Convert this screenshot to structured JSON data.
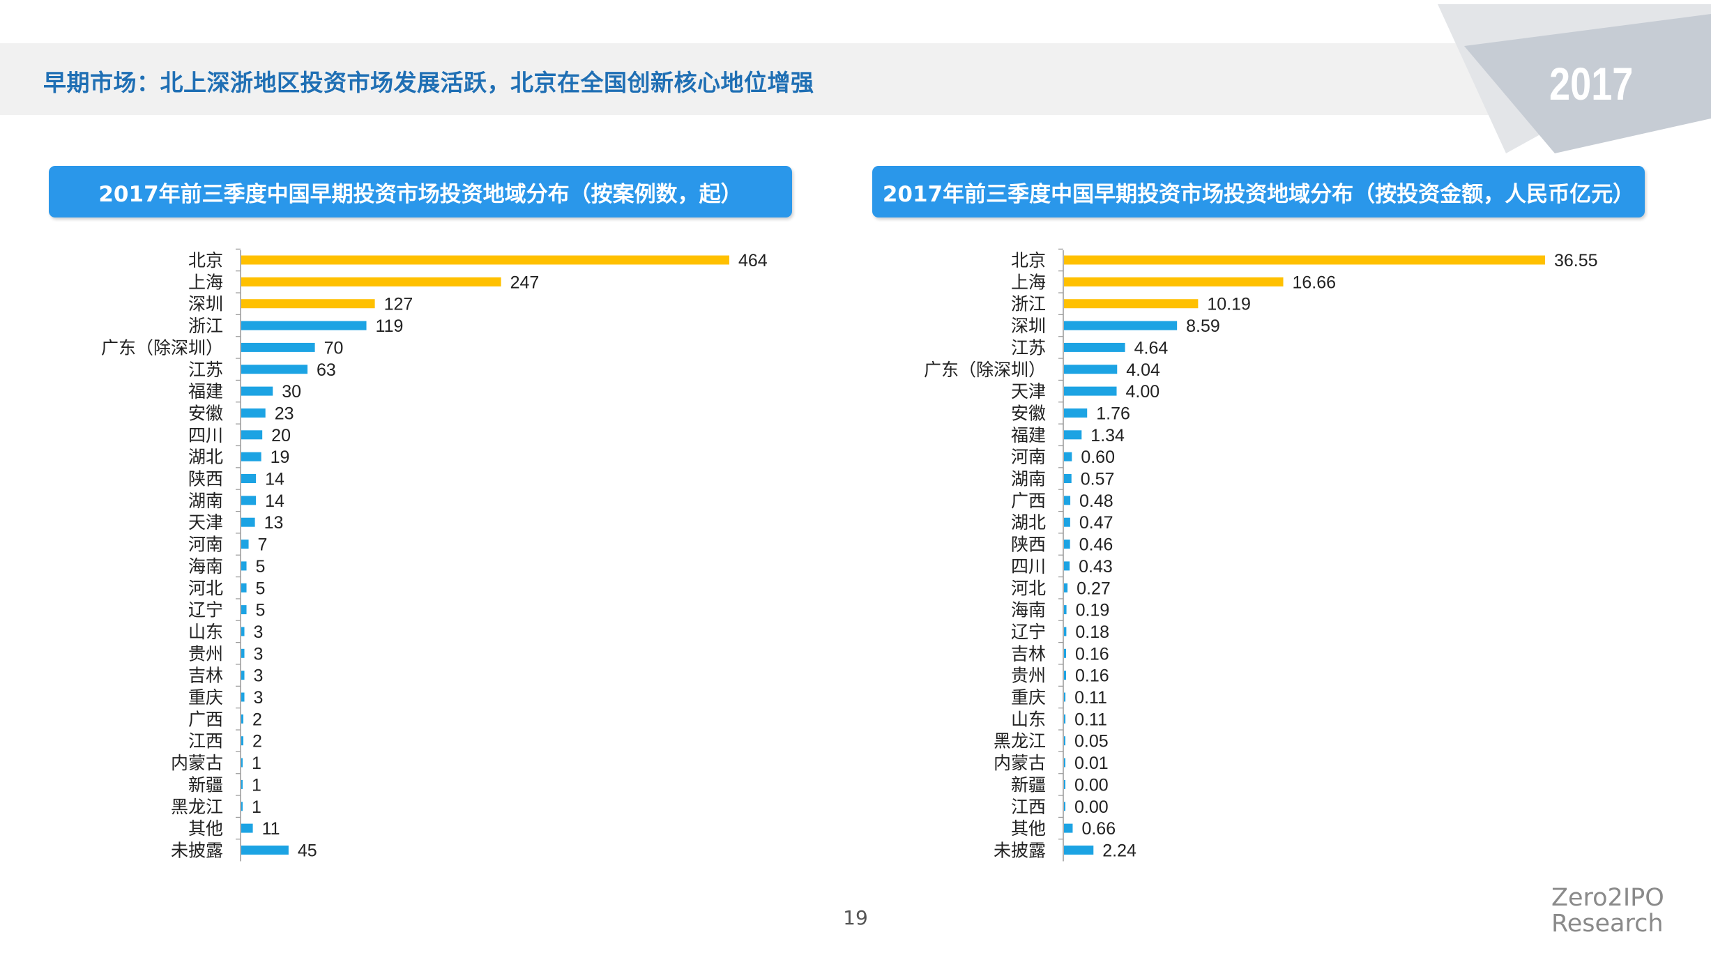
{
  "slide": {
    "title": "早期市场：北上深浙地区投资市场发展活跃，北京在全国创新核心地位增强",
    "year_badge": "2017",
    "page_number": "19",
    "brand_line1": "Zero2IPO",
    "brand_line2": "Research"
  },
  "colors": {
    "highlight": "#FFC000",
    "normal": "#1CA3E3",
    "header_bg": "#2A97EA",
    "title_text": "#1F6FB4"
  },
  "chart_data": [
    {
      "type": "bar",
      "orientation": "horizontal",
      "title": "2017年前三季度中国早期投资市场投资地域分布（按案例数，起）",
      "categories": [
        "北京",
        "上海",
        "深圳",
        "浙江",
        "广东（除深圳）",
        "江苏",
        "福建",
        "安徽",
        "四川",
        "湖北",
        "陕西",
        "湖南",
        "天津",
        "河南",
        "海南",
        "河北",
        "辽宁",
        "山东",
        "贵州",
        "吉林",
        "重庆",
        "广西",
        "江西",
        "内蒙古",
        "新疆",
        "黑龙江",
        "其他",
        "未披露"
      ],
      "values": [
        464,
        247,
        127,
        119,
        70,
        63,
        30,
        23,
        20,
        19,
        14,
        14,
        13,
        7,
        5,
        5,
        5,
        3,
        3,
        3,
        3,
        2,
        2,
        1,
        1,
        1,
        11,
        45
      ],
      "value_labels": [
        "464",
        "247",
        "127",
        "119",
        "70",
        "63",
        "30",
        "23",
        "20",
        "19",
        "14",
        "14",
        "13",
        "7",
        "5",
        "5",
        "5",
        "3",
        "3",
        "3",
        "3",
        "2",
        "2",
        "1",
        "1",
        "1",
        "11",
        "45"
      ],
      "highlight_count": 3,
      "xlim": [
        0,
        464
      ]
    },
    {
      "type": "bar",
      "orientation": "horizontal",
      "title": "2017年前三季度中国早期投资市场投资地域分布（按投资金额，人民币亿元）",
      "categories": [
        "北京",
        "上海",
        "浙江",
        "深圳",
        "江苏",
        "广东（除深圳）",
        "天津",
        "安徽",
        "福建",
        "河南",
        "湖南",
        "广西",
        "湖北",
        "陕西",
        "四川",
        "河北",
        "海南",
        "辽宁",
        "吉林",
        "贵州",
        "重庆",
        "山东",
        "黑龙江",
        "内蒙古",
        "新疆",
        "江西",
        "其他",
        "未披露"
      ],
      "values": [
        36.55,
        16.66,
        10.19,
        8.59,
        4.64,
        4.04,
        4.0,
        1.76,
        1.34,
        0.6,
        0.57,
        0.48,
        0.47,
        0.46,
        0.43,
        0.27,
        0.19,
        0.18,
        0.16,
        0.16,
        0.11,
        0.11,
        0.05,
        0.01,
        0.0,
        0.0,
        0.66,
        2.24
      ],
      "value_labels": [
        "36.55",
        "16.66",
        "10.19",
        "8.59",
        "4.64",
        "4.04",
        "4.00",
        "1.76",
        "1.34",
        "0.60",
        "0.57",
        "0.48",
        "0.47",
        "0.46",
        "0.43",
        "0.27",
        "0.19",
        "0.18",
        "0.16",
        "0.16",
        "0.11",
        "0.11",
        "0.05",
        "0.01",
        "0.00",
        "0.00",
        "0.66",
        "2.24"
      ],
      "highlight_count": 3,
      "xlim": [
        0,
        36.55
      ]
    }
  ]
}
